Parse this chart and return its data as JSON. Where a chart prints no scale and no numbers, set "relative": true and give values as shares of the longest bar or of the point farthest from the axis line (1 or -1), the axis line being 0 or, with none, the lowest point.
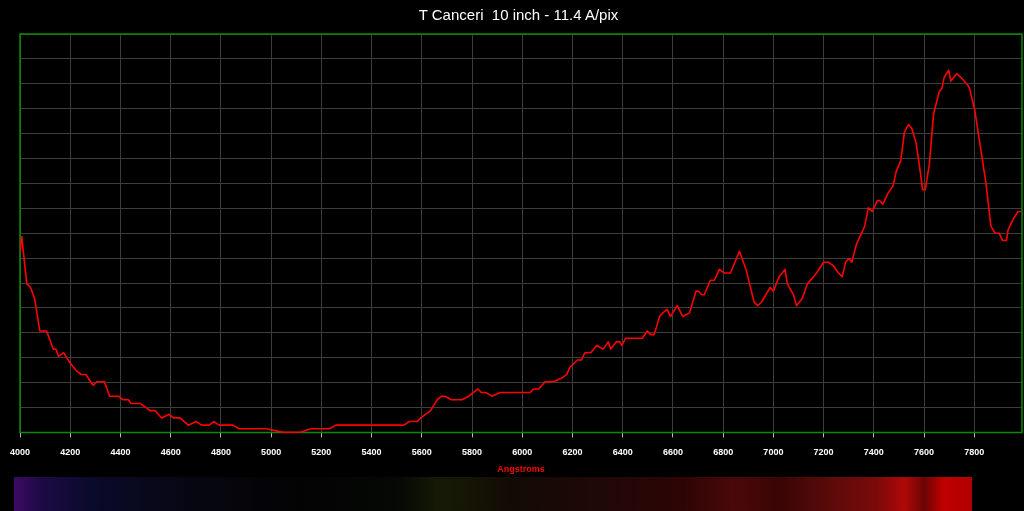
{
  "chart_data": {
    "type": "line",
    "title": "T Canceri  10 inch - 11.4 A/pix",
    "xlabel": "Angstroms",
    "color": "#ff0000",
    "relative": true,
    "grid": true,
    "xlim": [
      4000,
      7990
    ],
    "xticks": [
      4000,
      4200,
      4400,
      4600,
      4800,
      5000,
      5200,
      5400,
      5600,
      5800,
      6000,
      6200,
      6400,
      6600,
      6800,
      7000,
      7200,
      7400,
      7600,
      7800
    ],
    "x": [
      4000,
      4007,
      4027,
      4042,
      4058,
      4079,
      4106,
      4132,
      4143,
      4153,
      4174,
      4201,
      4225,
      4243,
      4262,
      4291,
      4307,
      4336,
      4357,
      4393,
      4410,
      4432,
      4441,
      4479,
      4518,
      4538,
      4564,
      4594,
      4611,
      4637,
      4670,
      4701,
      4723,
      4753,
      4772,
      4793,
      4849,
      4872,
      4921,
      4954,
      4981,
      5047,
      5113,
      5159,
      5199,
      5232,
      5258,
      5285,
      5305,
      5331,
      5357,
      5384,
      5423,
      5463,
      5529,
      5549,
      5582,
      5595,
      5615,
      5635,
      5661,
      5678,
      5692,
      5718,
      5760,
      5787,
      5824,
      5837,
      5856,
      5879,
      5912,
      5946,
      5972,
      5992,
      6032,
      6045,
      6065,
      6091,
      6124,
      6157,
      6177,
      6190,
      6220,
      6236,
      6249,
      6273,
      6296,
      6322,
      6342,
      6352,
      6375,
      6388,
      6397,
      6411,
      6424,
      6432,
      6445,
      6478,
      6498,
      6511,
      6525,
      6534,
      6547,
      6560,
      6577,
      6590,
      6617,
      6639,
      6666,
      6692,
      6701,
      6715,
      6725,
      6749,
      6765,
      6785,
      6805,
      6829,
      6865,
      6891,
      6923,
      6937,
      6953,
      6987,
      7000,
      7023,
      7046,
      7056,
      7080,
      7092,
      7115,
      7135,
      7148,
      7172,
      7200,
      7219,
      7239,
      7259,
      7274,
      7288,
      7301,
      7312,
      7331,
      7351,
      7364,
      7378,
      7394,
      7414,
      7423,
      7436,
      7456,
      7476,
      7489,
      7507,
      7522,
      7538,
      7551,
      7568,
      7581,
      7594,
      7605,
      7621,
      7638,
      7660,
      7671,
      7680,
      7698,
      7707,
      7730,
      7747,
      7773,
      7781,
      7802,
      7824,
      7846,
      7866,
      7882,
      7899,
      7912,
      7928,
      7935,
      7956,
      7974,
      7984
    ],
    "values": [
      0.5,
      0.54,
      0.41,
      0.4,
      0.37,
      0.28,
      0.28,
      0.23,
      0.23,
      0.21,
      0.22,
      0.19,
      0.17,
      0.16,
      0.16,
      0.13,
      0.14,
      0.14,
      0.1,
      0.1,
      0.09,
      0.09,
      0.08,
      0.08,
      0.06,
      0.06,
      0.04,
      0.05,
      0.04,
      0.04,
      0.02,
      0.03,
      0.02,
      0.02,
      0.03,
      0.02,
      0.02,
      0.01,
      0.01,
      0.01,
      0.01,
      0,
      0,
      0.01,
      0.01,
      0.01,
      0.02,
      0.02,
      0.02,
      0.02,
      0.02,
      0.02,
      0.02,
      0.02,
      0.02,
      0.03,
      0.03,
      0.04,
      0.05,
      0.06,
      0.09,
      0.1,
      0.1,
      0.09,
      0.09,
      0.1,
      0.12,
      0.11,
      0.11,
      0.1,
      0.11,
      0.11,
      0.11,
      0.11,
      0.11,
      0.12,
      0.12,
      0.14,
      0.14,
      0.15,
      0.16,
      0.18,
      0.2,
      0.2,
      0.22,
      0.22,
      0.24,
      0.23,
      0.25,
      0.23,
      0.25,
      0.25,
      0.24,
      0.26,
      0.26,
      0.26,
      0.26,
      0.26,
      0.28,
      0.27,
      0.27,
      0.29,
      0.32,
      0.33,
      0.34,
      0.32,
      0.35,
      0.32,
      0.33,
      0.39,
      0.39,
      0.38,
      0.38,
      0.42,
      0.42,
      0.45,
      0.44,
      0.44,
      0.5,
      0.45,
      0.36,
      0.35,
      0.36,
      0.4,
      0.39,
      0.43,
      0.45,
      0.41,
      0.38,
      0.35,
      0.37,
      0.41,
      0.42,
      0.44,
      0.47,
      0.47,
      0.46,
      0.44,
      0.43,
      0.47,
      0.48,
      0.47,
      0.52,
      0.55,
      0.57,
      0.62,
      0.61,
      0.64,
      0.64,
      0.63,
      0.66,
      0.68,
      0.72,
      0.75,
      0.83,
      0.85,
      0.84,
      0.8,
      0.74,
      0.67,
      0.67,
      0.74,
      0.88,
      0.94,
      0.95,
      0.98,
      1,
      0.97,
      0.99,
      0.98,
      0.96,
      0.95,
      0.89,
      0.79,
      0.69,
      0.57,
      0.55,
      0.55,
      0.53,
      0.53,
      0.56,
      0.59,
      0.61,
      0.61
    ]
  }
}
